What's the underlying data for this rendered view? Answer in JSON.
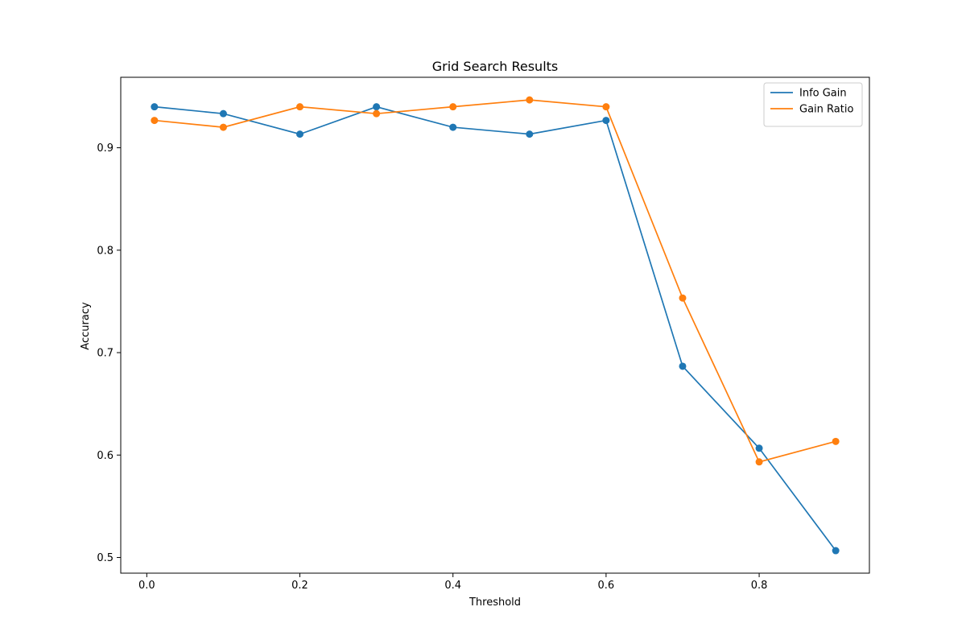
{
  "chart_data": {
    "type": "line",
    "title": "Grid Search Results",
    "xlabel": "Threshold",
    "ylabel": "Accuracy",
    "xlim": [
      -0.034,
      0.944
    ],
    "ylim": [
      0.4847,
      0.9688
    ],
    "xticks": [
      0.0,
      0.2,
      0.4,
      0.6,
      0.8
    ],
    "xtick_labels": [
      "0.0",
      "0.2",
      "0.4",
      "0.6",
      "0.8"
    ],
    "yticks": [
      0.5,
      0.6,
      0.7,
      0.8,
      0.9
    ],
    "ytick_labels": [
      "0.5",
      "0.6",
      "0.7",
      "0.8",
      "0.9"
    ],
    "grid": false,
    "legend_position": "top-right",
    "x": [
      0.01,
      0.1,
      0.2,
      0.3,
      0.4,
      0.5,
      0.6,
      0.7,
      0.8,
      0.9
    ],
    "series": [
      {
        "name": "Info Gain",
        "color": "#1f77b4",
        "values": [
          0.94,
          0.9333,
          0.9133,
          0.94,
          0.92,
          0.9133,
          0.9267,
          0.6867,
          0.6067,
          0.5067
        ]
      },
      {
        "name": "Gain Ratio",
        "color": "#ff7f0e",
        "values": [
          0.9267,
          0.92,
          0.94,
          0.9333,
          0.94,
          0.9467,
          0.94,
          0.7533,
          0.5933,
          0.6133
        ]
      }
    ]
  }
}
